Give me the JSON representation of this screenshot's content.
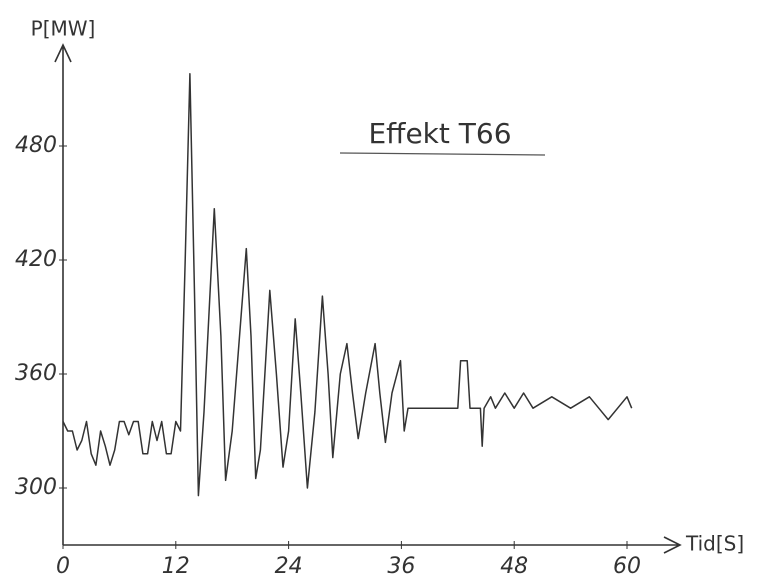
{
  "chart_data": {
    "type": "line",
    "title": "Effekt T66",
    "ylabel": "P[MW]",
    "xlabel": "Tid[S]",
    "x": [
      0,
      0.5,
      1,
      1.5,
      2,
      2.5,
      3,
      3.5,
      4,
      4.5,
      5,
      5.5,
      6,
      6.5,
      7,
      7.5,
      8,
      8.5,
      9,
      9.5,
      10,
      10.5,
      11,
      11.5,
      12,
      12.5,
      13,
      13.5,
      14,
      14.4,
      15,
      16.1,
      16.8,
      17.3,
      18,
      19.5,
      20,
      20.5,
      21,
      22,
      22.7,
      23.4,
      24,
      24.7,
      25.3,
      26,
      26.8,
      27.6,
      28.2,
      28.7,
      29.5,
      30.2,
      30.8,
      31.4,
      32.2,
      33.2,
      33.7,
      34.3,
      35,
      35.9,
      36.3,
      36.7,
      42,
      42.3,
      43,
      43.3,
      44.4,
      44.6,
      44.8,
      45.5,
      46,
      47,
      48,
      49,
      50,
      52,
      54,
      56,
      57,
      58,
      60,
      60.5
    ],
    "series": [
      {
        "color": "#333333",
        "values": [
          335,
          330,
          330,
          320,
          325,
          335,
          318,
          312,
          330,
          322,
          312,
          320,
          335,
          335,
          328,
          335,
          335,
          318,
          318,
          335,
          325,
          335,
          318,
          318,
          335,
          330,
          420,
          518,
          400,
          296,
          340,
          447,
          380,
          304,
          330,
          426,
          380,
          305,
          320,
          404,
          360,
          311,
          330,
          389,
          350,
          300,
          340,
          401,
          360,
          316,
          360,
          376,
          350,
          326,
          350,
          376,
          350,
          324,
          350,
          367,
          330,
          342,
          342,
          367,
          367,
          342,
          342,
          322,
          342,
          348,
          342,
          350,
          342,
          350,
          342,
          348,
          342,
          348,
          342,
          336,
          348,
          342
        ]
      }
    ],
    "xlim": [
      0,
      65
    ],
    "ylim": [
      270,
      540
    ],
    "xticks": [
      0,
      12,
      24,
      36,
      48,
      60
    ],
    "yticks": [
      300,
      360,
      420,
      480
    ],
    "grid": false
  }
}
